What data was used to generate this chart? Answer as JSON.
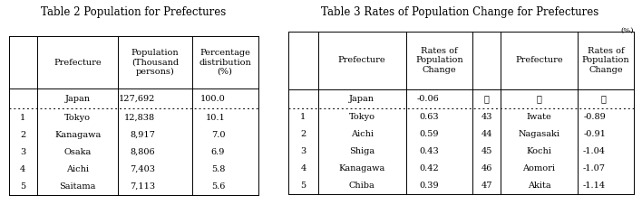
{
  "table2_title": "Table 2 Population for Prefectures",
  "table3_title": "Table 3 Rates of Population Change for Prefectures",
  "table2_col_headers": [
    "",
    "Prefecture",
    "Population\n(Thousand\npersons)",
    "Percentage\ndistribution\n(%)"
  ],
  "table2_japan_row": [
    "",
    "Japan",
    "127,692",
    "100.0"
  ],
  "table2_rows": [
    [
      "1",
      "Tokyo",
      "12,838",
      "10.1"
    ],
    [
      "2",
      "Kanagawa",
      "8,917",
      "7.0"
    ],
    [
      "3",
      "Osaka",
      "8,806",
      "6.9"
    ],
    [
      "4",
      "Aichi",
      "7,403",
      "5.8"
    ],
    [
      "5",
      "Saitama",
      "7,113",
      "5.6"
    ]
  ],
  "table3_col_headers": [
    "",
    "Prefecture",
    "Rates of\nPopulation\nChange",
    "",
    "Prefecture",
    "Rates of\nPopulation\nChange"
  ],
  "table3_unit": "(%)",
  "table3_japan_row": [
    "",
    "Japan",
    "-0.06",
    "⋮",
    "⋮",
    "⋮"
  ],
  "table3_rows": [
    [
      "1",
      "Tokyo",
      "0.63",
      "43",
      "Iwate",
      "-0.89"
    ],
    [
      "2",
      "Aichi",
      "0.59",
      "44",
      "Nagasaki",
      "-0.91"
    ],
    [
      "3",
      "Shiga",
      "0.43",
      "45",
      "Kochi",
      "-1.04"
    ],
    [
      "4",
      "Kanagawa",
      "0.42",
      "46",
      "Aomori",
      "-1.07"
    ],
    [
      "5",
      "Chiba",
      "0.39",
      "47",
      "Akita",
      "-1.14"
    ]
  ],
  "bg_color": "#ffffff",
  "font_size": 7.0,
  "title_font_size": 8.5,
  "header_font_size": 7.0
}
